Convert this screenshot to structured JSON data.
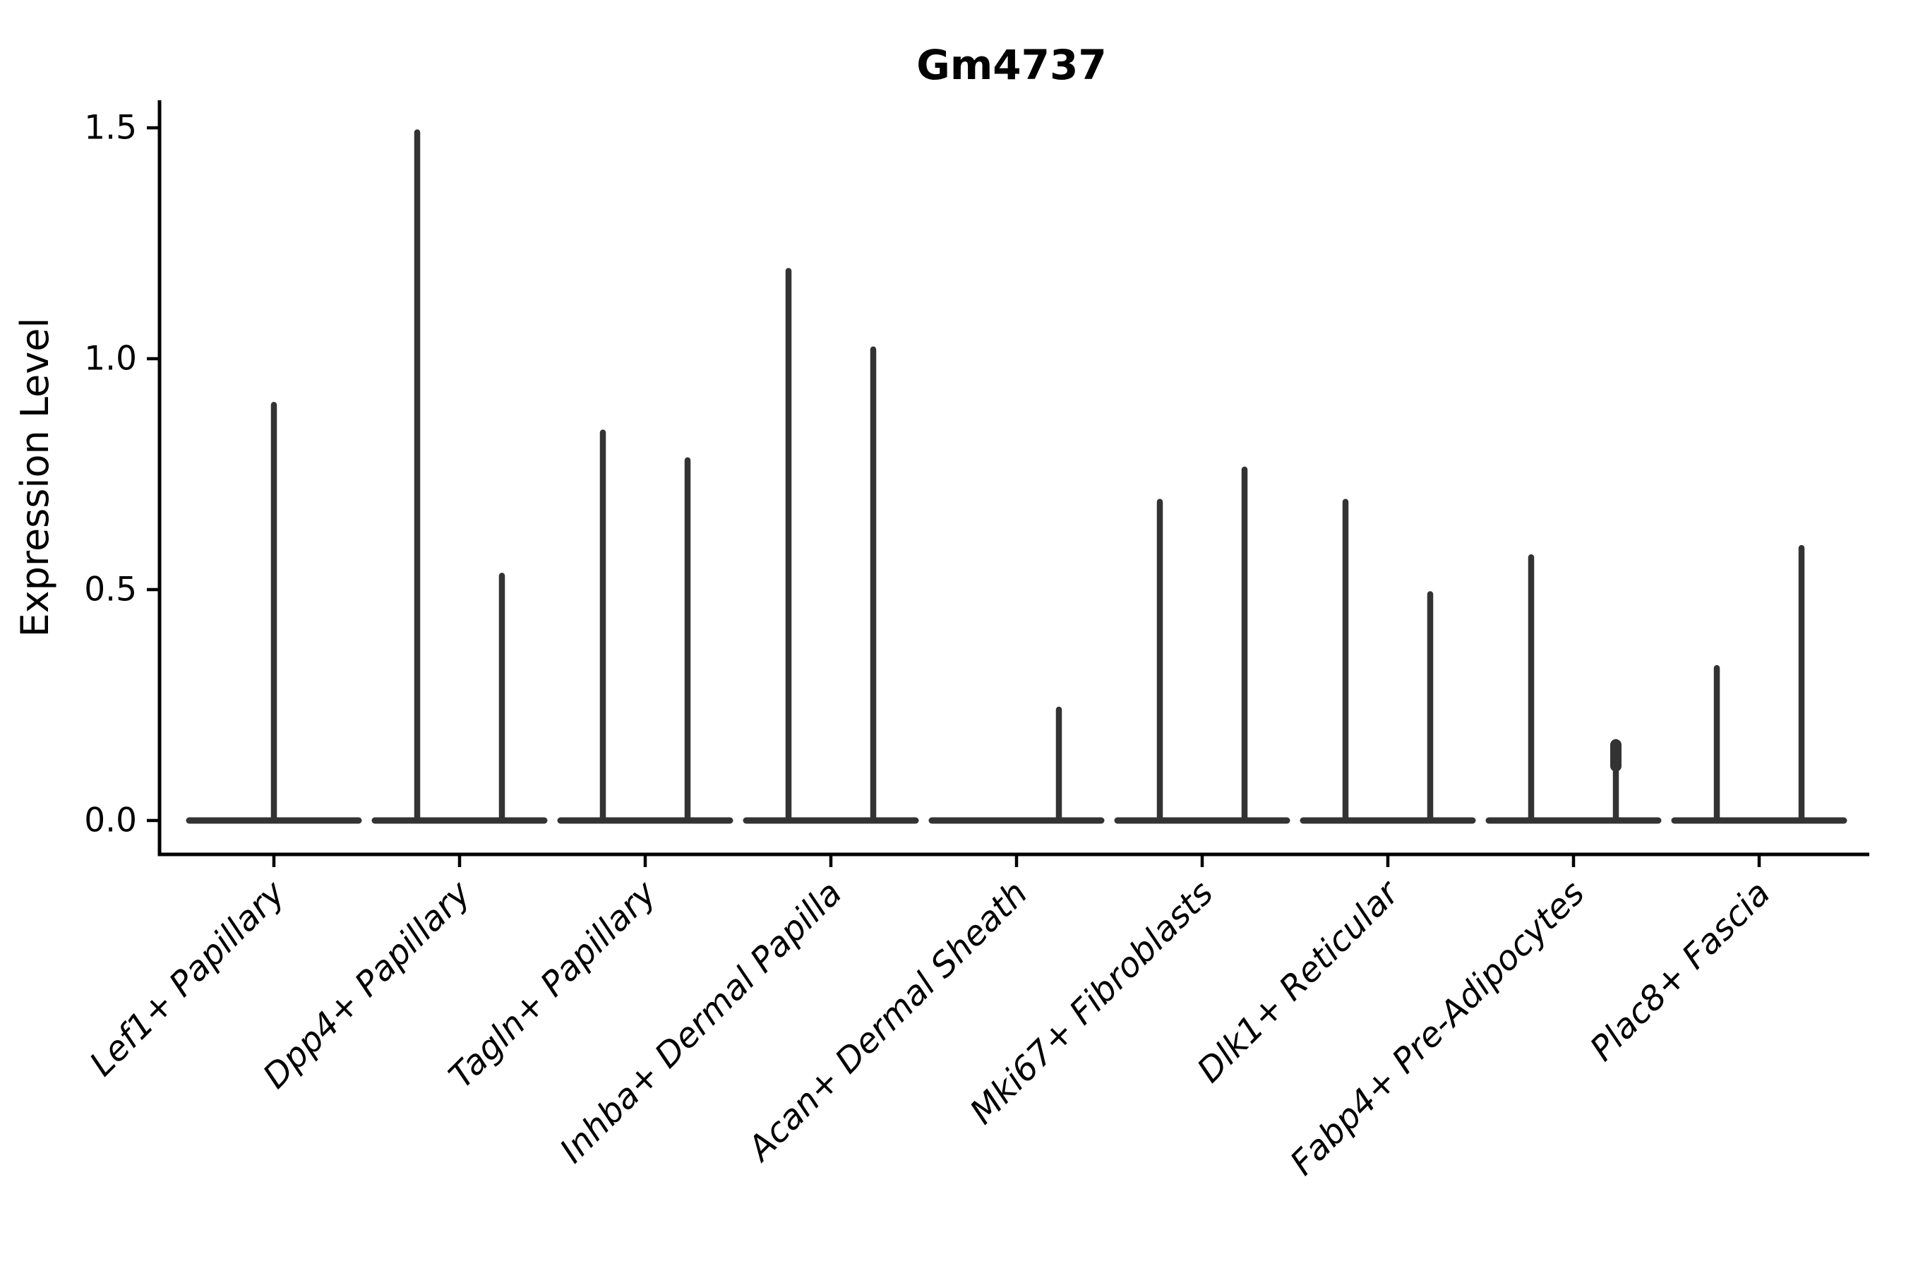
{
  "title": "Gm4737",
  "ylabel": "Expression Level",
  "chart_data": {
    "type": "violin",
    "title": "Gm4737",
    "xlabel": "",
    "ylabel": "Expression Level",
    "ylim": [
      -0.07,
      1.56
    ],
    "yticks": [
      0.0,
      0.5,
      1.0,
      1.5
    ],
    "ytick_labels": [
      "0.0",
      "0.5",
      "1.0",
      "1.5"
    ],
    "grid": false,
    "legend": "none",
    "xtick_rotation_deg": 45,
    "violin_color": "#333333",
    "axis_color": "#000000",
    "categories": [
      "Lef1+ Papillary",
      "Dpp4+ Papillary",
      "Tagln+ Papillary",
      "Inhba+ Dermal Papilla",
      "Acan+ Dermal Sheath",
      "Mki67+ Fibroblasts",
      "Dlk1+ Reticular",
      "Fabp4+ Pre-Adipocytes",
      "Plac8+ Fascia"
    ],
    "description": "Sparse expression violins: each violin collapses to a flat base at 0 with a thin spike up to its maximum expression value. Most categories contain two side-by-side (dodged) violins; Lef1+ Papillary has a single full-width centered violin.",
    "violins": [
      {
        "category": "Lef1+ Papillary",
        "position": "center",
        "max": 0.9,
        "tip_bulge": false
      },
      {
        "category": "Dpp4+ Papillary",
        "position": "left",
        "max": 1.49,
        "tip_bulge": false
      },
      {
        "category": "Dpp4+ Papillary",
        "position": "right",
        "max": 0.53,
        "tip_bulge": false
      },
      {
        "category": "Tagln+ Papillary",
        "position": "left",
        "max": 0.84,
        "tip_bulge": false
      },
      {
        "category": "Tagln+ Papillary",
        "position": "right",
        "max": 0.78,
        "tip_bulge": false
      },
      {
        "category": "Inhba+ Dermal Papilla",
        "position": "left",
        "max": 1.19,
        "tip_bulge": false
      },
      {
        "category": "Inhba+ Dermal Papilla",
        "position": "right",
        "max": 1.02,
        "tip_bulge": false
      },
      {
        "category": "Acan+ Dermal Sheath",
        "position": "left",
        "max": 0.0,
        "tip_bulge": false
      },
      {
        "category": "Acan+ Dermal Sheath",
        "position": "right",
        "max": 0.24,
        "tip_bulge": false
      },
      {
        "category": "Mki67+ Fibroblasts",
        "position": "left",
        "max": 0.69,
        "tip_bulge": false
      },
      {
        "category": "Mki67+ Fibroblasts",
        "position": "right",
        "max": 0.76,
        "tip_bulge": false
      },
      {
        "category": "Dlk1+ Reticular",
        "position": "left",
        "max": 0.69,
        "tip_bulge": false
      },
      {
        "category": "Dlk1+ Reticular",
        "position": "right",
        "max": 0.49,
        "tip_bulge": false
      },
      {
        "category": "Fabp4+ Pre-Adipocytes",
        "position": "left",
        "max": 0.57,
        "tip_bulge": false
      },
      {
        "category": "Fabp4+ Pre-Adipocytes",
        "position": "right",
        "max": 0.17,
        "tip_bulge": true
      },
      {
        "category": "Plac8+ Fascia",
        "position": "left",
        "max": 0.33,
        "tip_bulge": false
      },
      {
        "category": "Plac8+ Fascia",
        "position": "right",
        "max": 0.59,
        "tip_bulge": false
      }
    ]
  }
}
